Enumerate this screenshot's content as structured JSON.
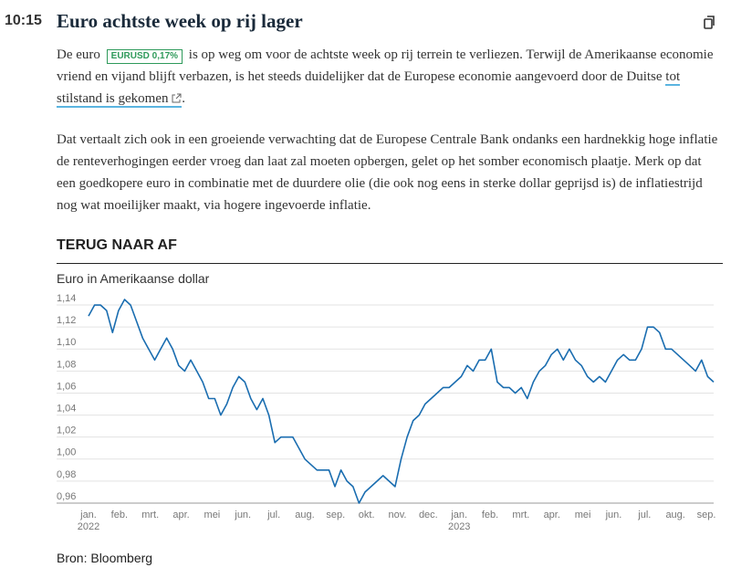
{
  "time": "10:15",
  "title": "Euro achtste week op rij lager",
  "paragraph1": {
    "before": "De euro",
    "badge_ticker": "EURUSD",
    "badge_change": "0,17%",
    "middle": "is op weg om voor de achtste week op rij terrein te verliezen. Terwijl de Amerikaanse economie vriend en vijand blijft verbazen, is het steeds duidelijker dat de Europese economie aangevoerd door de Duitse",
    "link": "tot stilstand is gekomen",
    "after": "."
  },
  "paragraph2": "Dat vertaalt zich ook in een groeiende verwachting dat de Europese Centrale Bank ondanks een hardnekkig hoge inflatie de renteverhogingen eerder vroeg dan laat zal moeten opbergen, gelet op het somber economisch plaatje. Merk op dat een goedkopere euro in combinatie met de duurdere olie (die ook nog eens in sterke dollar geprijsd is) de inflatiestrijd nog wat moeilijker maakt, via hogere ingevoerde inflatie.",
  "chart_data": {
    "type": "line",
    "section_title": "TERUG NAAR AF",
    "subtitle": "Euro in Amerikaanse dollar",
    "source": "Bron: Bloomberg",
    "xticks": [
      "jan.",
      "feb.",
      "mrt.",
      "apr.",
      "mei",
      "jun.",
      "jul.",
      "aug.",
      "sep.",
      "okt.",
      "nov.",
      "dec.",
      "jan.",
      "feb.",
      "mrt.",
      "apr.",
      "mei",
      "jun.",
      "jul.",
      "aug.",
      "sep."
    ],
    "xtick_years": [
      "2022",
      null,
      null,
      null,
      null,
      null,
      null,
      null,
      null,
      null,
      null,
      null,
      "2023",
      null,
      null,
      null,
      null,
      null,
      null,
      null,
      null
    ],
    "color": "#1a6db0",
    "grid": true,
    "ylim": [
      0.96,
      1.15
    ],
    "yticks": [
      {
        "value": 0.96,
        "label": "0,96"
      },
      {
        "value": 0.98,
        "label": "0,98"
      },
      {
        "value": 1.0,
        "label": "1,00"
      },
      {
        "value": 1.02,
        "label": "1,02"
      },
      {
        "value": 1.04,
        "label": "1,04"
      },
      {
        "value": 1.06,
        "label": "1,06"
      },
      {
        "value": 1.08,
        "label": "1,08"
      },
      {
        "value": 1.1,
        "label": "1,10"
      },
      {
        "value": 1.12,
        "label": "1,12"
      },
      {
        "value": 1.14,
        "label": "1,14"
      }
    ],
    "values": [
      1.13,
      1.14,
      1.14,
      1.135,
      1.115,
      1.135,
      1.145,
      1.14,
      1.125,
      1.11,
      1.1,
      1.09,
      1.1,
      1.11,
      1.1,
      1.085,
      1.08,
      1.09,
      1.08,
      1.07,
      1.055,
      1.055,
      1.04,
      1.05,
      1.065,
      1.075,
      1.07,
      1.055,
      1.045,
      1.055,
      1.04,
      1.015,
      1.02,
      1.02,
      1.02,
      1.01,
      1.0,
      0.995,
      0.99,
      0.99,
      0.99,
      0.975,
      0.99,
      0.98,
      0.975,
      0.96,
      0.97,
      0.975,
      0.98,
      0.985,
      0.98,
      0.975,
      1.0,
      1.02,
      1.035,
      1.04,
      1.05,
      1.055,
      1.06,
      1.065,
      1.065,
      1.07,
      1.075,
      1.085,
      1.08,
      1.09,
      1.09,
      1.1,
      1.07,
      1.065,
      1.065,
      1.06,
      1.065,
      1.055,
      1.07,
      1.08,
      1.085,
      1.095,
      1.1,
      1.09,
      1.1,
      1.09,
      1.085,
      1.075,
      1.07,
      1.075,
      1.07,
      1.08,
      1.09,
      1.095,
      1.09,
      1.09,
      1.1,
      1.12,
      1.12,
      1.115,
      1.1,
      1.1,
      1.095,
      1.09,
      1.085,
      1.08,
      1.09,
      1.075,
      1.07
    ]
  }
}
